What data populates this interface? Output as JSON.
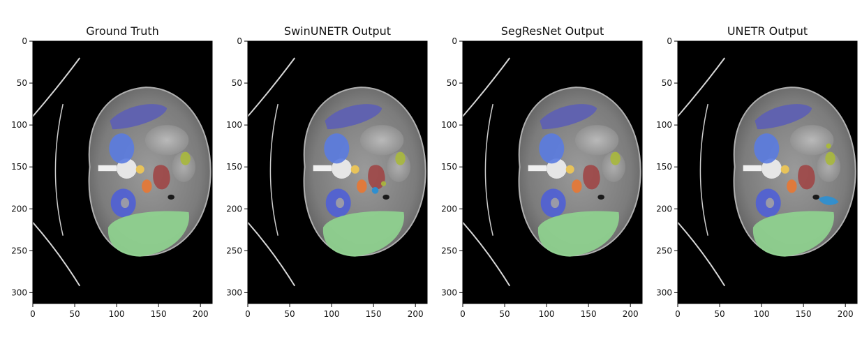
{
  "figure": {
    "panels": [
      {
        "title": "Ground Truth",
        "variant": "gt"
      },
      {
        "title": "SwinUNETR Output",
        "variant": "swin"
      },
      {
        "title": "SegResNet Output",
        "variant": "segres"
      },
      {
        "title": "UNETR Output",
        "variant": "unetr"
      }
    ],
    "x_ticks": [
      "0",
      "50",
      "100",
      "150",
      "200"
    ],
    "y_ticks": [
      "0",
      "50",
      "100",
      "150",
      "200",
      "250",
      "300"
    ],
    "colors": {
      "background": "#000000",
      "soft_tissue": "#8c8c8c",
      "spleen": "#5d5fb3",
      "kidney_right": "#5a7be0",
      "kidney_left": "#4f5fd6",
      "liver": "#8fd38f",
      "aorta": "#e8c35a",
      "ivc": "#e07a3c",
      "vertebra_region": "#9e4a4a",
      "gallbladder": "#a9b83c",
      "pancreas_error": "#2f8fd0"
    }
  }
}
